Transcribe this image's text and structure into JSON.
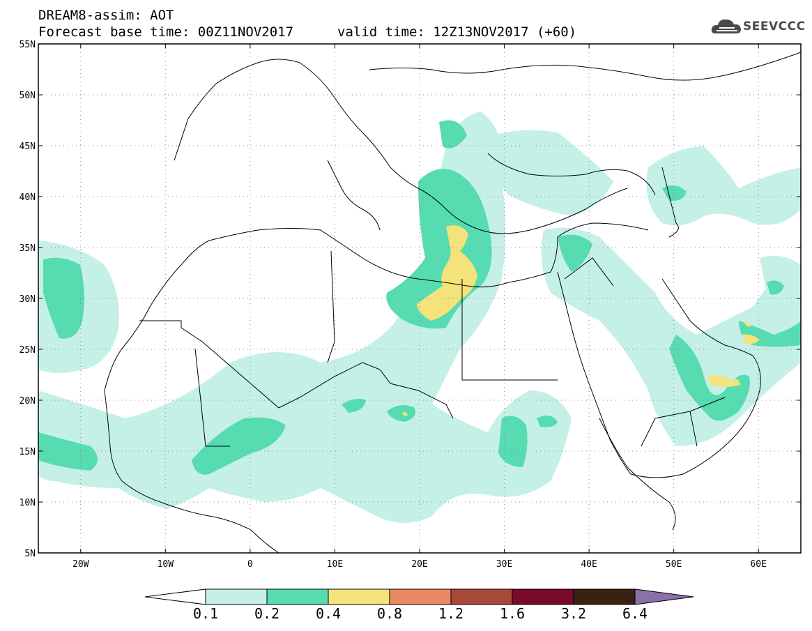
{
  "title_line1": "DREAM8-assim: AOT",
  "title_line2": "Forecast base time: 00Z11NOV2017",
  "valid_time": "valid time: 12Z13NOV2017 (+60)",
  "logo_text": "SEEVCCC",
  "map": {
    "lon_range": [
      -25,
      65
    ],
    "lat_range": [
      5,
      55
    ],
    "lat_ticks": [
      "5N",
      "10N",
      "15N",
      "20N",
      "25N",
      "30N",
      "35N",
      "40N",
      "45N",
      "50N",
      "55N"
    ],
    "lon_ticks": [
      "20W",
      "10W",
      "0",
      "10E",
      "20E",
      "30E",
      "40E",
      "50E",
      "60E"
    ],
    "grid": "dotted"
  },
  "colorbar": {
    "labels": [
      "0.1",
      "0.2",
      "0.4",
      "0.8",
      "1.2",
      "1.6",
      "3.2",
      "6.4"
    ],
    "colors": [
      "#c4f0e8",
      "#56dcb0",
      "#f4e27a",
      "#e88a62",
      "#a84838",
      "#7a0a2a",
      "#3a2212",
      "#8c70a8"
    ]
  }
}
